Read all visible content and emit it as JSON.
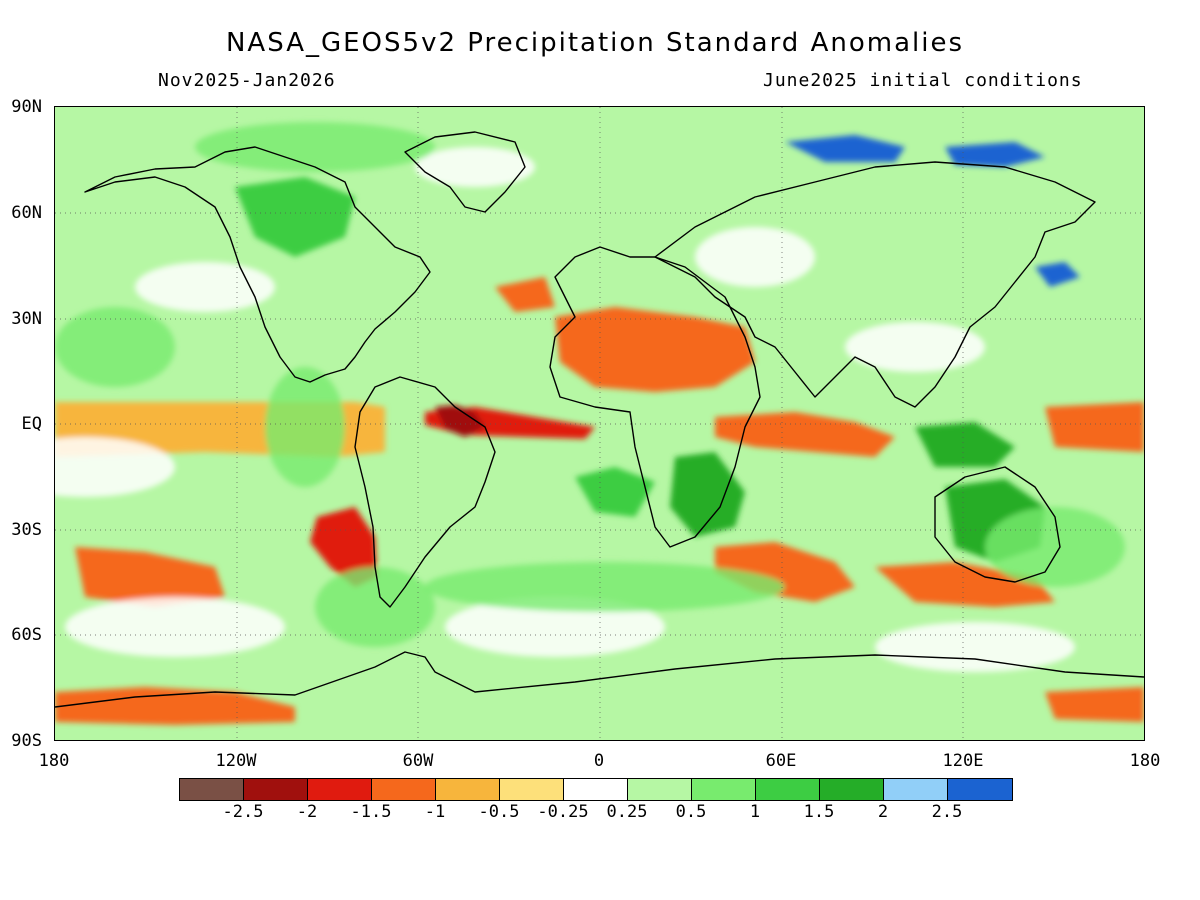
{
  "title": "NASA_GEOS5v2 Precipitation Standard Anomalies",
  "subtitle_left": "Nov2025-Jan2026",
  "subtitle_right": "June2025 initial conditions",
  "lat_labels": [
    "90N",
    "60N",
    "30N",
    "EQ",
    "30S",
    "60S",
    "90S"
  ],
  "lon_labels": [
    "180",
    "120W",
    "60W",
    "0",
    "60E",
    "120E",
    "180"
  ],
  "colorbar": {
    "colors": [
      "#7a5045",
      "#a0100d",
      "#e01b0f",
      "#f5681c",
      "#f7b53c",
      "#fde07a",
      "#ffffff",
      "#b6f7a4",
      "#78eb6e",
      "#3dcd43",
      "#25ad28",
      "#91cff8",
      "#1b63d1"
    ],
    "labels": [
      "-2.5",
      "-2",
      "-1.5",
      "-1",
      "-0.5",
      "-0.25",
      "0.25",
      "0.5",
      "1",
      "1.5",
      "2",
      "2.5"
    ]
  },
  "map": {
    "background_color": "#b6f7a4",
    "anomaly_regions": [
      {
        "name": "pacific-itcz-dry",
        "level": "-0.5"
      },
      {
        "name": "atlantic-equatorial-dry",
        "level": "-1.5"
      },
      {
        "name": "north-brazil-dry",
        "level": "-2"
      },
      {
        "name": "indian-ocean-dry",
        "level": "-1"
      },
      {
        "name": "sahara-dry",
        "level": "-1"
      },
      {
        "name": "southern-ocean-dry",
        "level": "-1"
      },
      {
        "name": "argentina-dry",
        "level": "-1.5"
      },
      {
        "name": "antarctic-coast-dry",
        "level": "-1"
      },
      {
        "name": "south-atlantic-wet",
        "level": "1"
      },
      {
        "name": "south-africa-wet",
        "level": "1.5"
      },
      {
        "name": "australia-wet",
        "level": "1.5"
      },
      {
        "name": "maritime-continent-wet",
        "level": "1.5"
      },
      {
        "name": "siberia-wet",
        "level": "2.5"
      },
      {
        "name": "canada-wet",
        "level": "1"
      }
    ]
  }
}
